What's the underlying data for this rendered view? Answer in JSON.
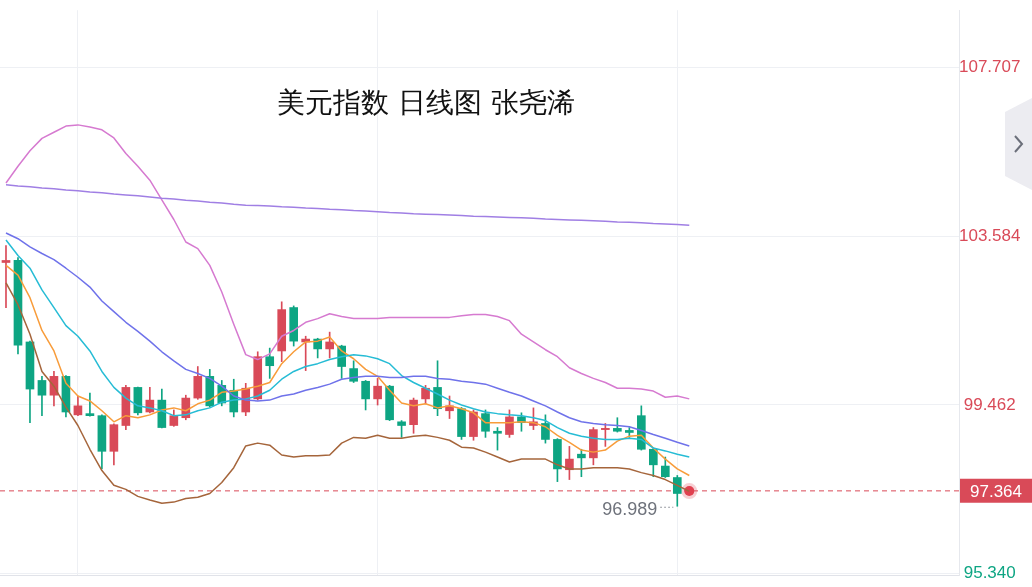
{
  "chart_data": {
    "type": "candlestick",
    "title": "美元指数 日线图 张尧浠",
    "categories": [
      null,
      null,
      null,
      null,
      null,
      null,
      null,
      null,
      null,
      null,
      null,
      null,
      null,
      null,
      null,
      null,
      null,
      null,
      null,
      null,
      null,
      null,
      null,
      null,
      null,
      null,
      null,
      null,
      null,
      null,
      null,
      null,
      null,
      null,
      null,
      null,
      null,
      null,
      null,
      null,
      null,
      null,
      null,
      null,
      null,
      null,
      null,
      null,
      null,
      null,
      null,
      null,
      null,
      null,
      null,
      null,
      null,
      null,
      null,
      null,
      null,
      null,
      null,
      null,
      null,
      null,
      null,
      null,
      null,
      null,
      null,
      null,
      null,
      null,
      null,
      null,
      null,
      null,
      null,
      null
    ],
    "ohlc": [
      [
        102.94,
        103.35,
        101.84,
        102.99
      ],
      [
        102.99,
        103.06,
        100.71,
        100.92
      ],
      [
        101.0,
        101.02,
        99.03,
        99.85
      ],
      [
        100.06,
        100.16,
        99.2,
        99.7
      ],
      [
        99.7,
        100.28,
        99.44,
        100.16
      ],
      [
        100.16,
        100.18,
        99.17,
        99.29
      ],
      [
        99.22,
        99.68,
        99.2,
        99.44
      ],
      [
        99.25,
        99.75,
        99.19,
        99.2
      ],
      [
        99.2,
        99.22,
        97.9,
        98.33
      ],
      [
        98.33,
        99.0,
        98.0,
        98.98
      ],
      [
        98.96,
        99.94,
        98.86,
        99.89
      ],
      [
        99.89,
        99.9,
        99.22,
        99.27
      ],
      [
        99.29,
        99.89,
        99.27,
        99.58
      ],
      [
        99.58,
        99.85,
        98.9,
        98.91
      ],
      [
        98.96,
        99.34,
        98.94,
        99.2
      ],
      [
        99.15,
        99.7,
        99.1,
        99.63
      ],
      [
        99.63,
        100.4,
        99.6,
        100.16
      ],
      [
        100.16,
        100.33,
        99.41,
        99.44
      ],
      [
        99.94,
        100.06,
        99.44,
        99.51
      ],
      [
        99.82,
        100.09,
        99.17,
        99.29
      ],
      [
        99.29,
        99.99,
        99.2,
        99.87
      ],
      [
        99.61,
        100.76,
        99.58,
        100.64
      ],
      [
        100.64,
        100.85,
        100.11,
        100.42
      ],
      [
        100.78,
        101.98,
        100.52,
        101.79
      ],
      [
        101.84,
        101.88,
        100.9,
        101.02
      ],
      [
        101.0,
        101.14,
        100.3,
        101.07
      ],
      [
        101.07,
        101.09,
        100.61,
        100.83
      ],
      [
        100.83,
        101.24,
        100.61,
        101.0
      ],
      [
        100.9,
        100.92,
        100.11,
        100.4
      ],
      [
        100.35,
        100.54,
        100.01,
        100.04
      ],
      [
        100.04,
        100.06,
        99.34,
        99.61
      ],
      [
        99.61,
        100.11,
        99.46,
        99.92
      ],
      [
        99.92,
        99.94,
        99.08,
        99.1
      ],
      [
        99.05,
        99.08,
        98.67,
        98.96
      ],
      [
        98.98,
        99.63,
        98.77,
        99.58
      ],
      [
        99.61,
        99.94,
        99.49,
        99.87
      ],
      [
        99.89,
        100.54,
        99.2,
        99.37
      ],
      [
        99.32,
        99.68,
        99.13,
        99.44
      ],
      [
        99.37,
        99.4,
        98.62,
        98.69
      ],
      [
        98.69,
        99.34,
        98.6,
        99.29
      ],
      [
        99.25,
        99.34,
        98.67,
        98.82
      ],
      [
        98.82,
        98.91,
        98.36,
        98.77
      ],
      [
        98.74,
        99.34,
        98.67,
        99.17
      ],
      [
        99.17,
        99.27,
        98.82,
        99.03
      ],
      [
        98.96,
        99.39,
        98.86,
        99.05
      ],
      [
        99.01,
        99.22,
        98.53,
        98.62
      ],
      [
        98.62,
        98.64,
        97.59,
        97.9
      ],
      [
        97.88,
        98.45,
        97.64,
        98.14
      ],
      [
        98.26,
        98.38,
        97.71,
        98.17
      ],
      [
        98.17,
        98.91,
        98.0,
        98.86
      ],
      [
        98.86,
        99.01,
        98.45,
        98.89
      ],
      [
        98.89,
        99.15,
        98.8,
        98.82
      ],
      [
        98.84,
        98.91,
        98.67,
        98.79
      ],
      [
        99.2,
        99.44,
        98.36,
        98.38
      ],
      [
        98.38,
        98.4,
        97.71,
        98.0
      ],
      [
        97.97,
        98.19,
        97.69,
        97.71
      ],
      [
        97.69,
        97.74,
        96.989,
        97.3
      ],
      null,
      null,
      null,
      null,
      null,
      null,
      null,
      null,
      null,
      null,
      null,
      null,
      null,
      null,
      null,
      null,
      null,
      null,
      null,
      null,
      null,
      null,
      null
    ],
    "colors": [
      "#d94a58",
      "#0ea583",
      "#0ea583",
      "#0ea583",
      "#d94a58",
      "#0ea583",
      "#d94a58",
      "#0ea583",
      "#0ea583",
      "#d94a58",
      "#d94a58",
      "#0ea583",
      "#d94a58",
      "#0ea583",
      "#d94a58",
      "#d94a58",
      "#d94a58",
      "#0ea583",
      "#0ea583",
      "#0ea583",
      "#d94a58",
      "#d94a58",
      "#0ea583",
      "#d94a58",
      "#0ea583",
      "#d94a58",
      "#0ea583",
      "#d94a58",
      "#0ea583",
      "#0ea583",
      "#0ea583",
      "#d94a58",
      "#0ea583",
      "#0ea583",
      "#d94a58",
      "#d94a58",
      "#0ea583",
      "#d94a58",
      "#0ea583",
      "#d94a58",
      "#0ea583",
      "#0ea583",
      "#d94a58",
      "#0ea583",
      "#d94a58",
      "#0ea583",
      "#0ea583",
      "#d94a58",
      "#0ea583",
      "#d94a58",
      "#d94a58",
      "#0ea583",
      "#0ea583",
      "#0ea583",
      "#0ea583",
      "#0ea583",
      "#0ea583",
      null,
      null,
      null,
      null,
      null,
      null,
      null,
      null,
      null,
      null,
      null,
      null,
      null,
      null,
      null,
      null,
      null,
      null,
      null,
      null,
      null,
      null,
      null
    ],
    "series": [
      {
        "type": "line",
        "color": "#a07fe4",
        "values": [
          104.84,
          104.81,
          104.79,
          104.76,
          104.74,
          104.71,
          104.69,
          104.66,
          104.64,
          104.61,
          104.59,
          104.57,
          104.54,
          104.51,
          104.49,
          104.46,
          104.44,
          104.41,
          104.39,
          104.36,
          104.34,
          104.33,
          104.32,
          104.3,
          104.29,
          104.27,
          104.26,
          104.24,
          104.23,
          104.21,
          104.2,
          104.18,
          104.16,
          104.15,
          104.13,
          104.12,
          104.11,
          104.1,
          104.09,
          104.07,
          104.06,
          104.05,
          104.04,
          104.03,
          104.02,
          104.0,
          103.99,
          103.98,
          103.97,
          103.96,
          103.95,
          103.93,
          103.92,
          103.91,
          103.89,
          103.88,
          103.87,
          103.85,
          null,
          null,
          null,
          null,
          null,
          null,
          null,
          null,
          null,
          null,
          null,
          null,
          null,
          null,
          null,
          null,
          null,
          null,
          null,
          null,
          null,
          null
        ]
      },
      {
        "type": "line",
        "color": "#d67ad0",
        "values": [
          104.88,
          105.29,
          105.67,
          105.97,
          106.12,
          106.27,
          106.3,
          106.25,
          106.18,
          105.98,
          105.6,
          105.29,
          104.95,
          104.47,
          103.99,
          103.44,
          103.28,
          102.87,
          102.22,
          101.43,
          100.69,
          100.57,
          100.71,
          101.14,
          101.28,
          101.48,
          101.57,
          101.69,
          101.62,
          101.57,
          101.57,
          101.57,
          101.6,
          101.6,
          101.6,
          101.6,
          101.6,
          101.6,
          101.64,
          101.67,
          101.67,
          101.62,
          101.52,
          101.19,
          101.0,
          100.81,
          100.64,
          100.37,
          100.23,
          100.11,
          100.01,
          99.87,
          99.87,
          99.85,
          99.8,
          99.65,
          99.68,
          99.61,
          null,
          null,
          null,
          null,
          null,
          null,
          null,
          null,
          null,
          null,
          null,
          null,
          null,
          null,
          null,
          null,
          null,
          null,
          null,
          null,
          null,
          null
        ]
      },
      {
        "type": "line",
        "color": "#6f72ea",
        "values": [
          103.66,
          103.52,
          103.32,
          103.16,
          103.01,
          102.8,
          102.58,
          102.34,
          102.0,
          101.74,
          101.48,
          101.26,
          101.02,
          100.76,
          100.54,
          100.33,
          100.23,
          100.11,
          99.92,
          99.68,
          99.58,
          99.56,
          99.58,
          99.68,
          99.73,
          99.82,
          99.89,
          99.97,
          100.09,
          100.13,
          100.16,
          100.16,
          100.13,
          100.13,
          100.16,
          100.16,
          100.11,
          100.09,
          100.04,
          100.01,
          99.97,
          99.87,
          99.77,
          99.68,
          99.56,
          99.44,
          99.29,
          99.15,
          99.05,
          99.01,
          98.98,
          98.96,
          98.93,
          98.84,
          98.74,
          98.65,
          98.55,
          98.46,
          null,
          null,
          null,
          null,
          null,
          null,
          null,
          null,
          null,
          null,
          null,
          null,
          null,
          null,
          null,
          null,
          null,
          null,
          null,
          null,
          null,
          null
        ]
      },
      {
        "type": "line",
        "color": "#26bcd5",
        "values": [
          103.49,
          103.11,
          102.8,
          102.27,
          101.84,
          101.4,
          101.14,
          100.78,
          100.28,
          99.89,
          99.63,
          99.44,
          99.39,
          99.32,
          99.2,
          99.22,
          99.32,
          99.39,
          99.53,
          99.58,
          99.61,
          99.68,
          99.82,
          100.09,
          100.28,
          100.4,
          100.47,
          100.57,
          100.64,
          100.69,
          100.66,
          100.59,
          100.47,
          100.18,
          100.01,
          99.87,
          99.73,
          99.58,
          99.46,
          99.37,
          99.29,
          99.25,
          99.22,
          99.2,
          99.15,
          99.08,
          98.91,
          98.77,
          98.7,
          98.65,
          98.62,
          98.62,
          98.65,
          98.62,
          98.41,
          98.34,
          98.26,
          98.19,
          null,
          null,
          null,
          null,
          null,
          null,
          null,
          null,
          null,
          null,
          null,
          null,
          null,
          null,
          null,
          null,
          null,
          null,
          null,
          null,
          null,
          null
        ]
      },
      {
        "type": "line",
        "color": "#f89c3a",
        "values": [
          102.87,
          102.63,
          102.08,
          101.28,
          100.78,
          99.99,
          99.68,
          99.56,
          99.32,
          99.05,
          99.2,
          99.15,
          99.22,
          99.34,
          99.39,
          99.32,
          99.49,
          99.58,
          99.77,
          99.8,
          99.85,
          99.92,
          100.01,
          100.47,
          100.76,
          101.0,
          101.02,
          101.12,
          100.78,
          100.59,
          100.33,
          100.16,
          99.82,
          99.51,
          99.44,
          99.49,
          99.39,
          99.44,
          99.37,
          99.27,
          99.03,
          99.03,
          99.03,
          99.05,
          99.03,
          98.93,
          98.72,
          98.55,
          98.36,
          98.31,
          98.36,
          98.58,
          98.7,
          98.72,
          98.41,
          98.14,
          97.9,
          97.74,
          null,
          null,
          null,
          null,
          null,
          null,
          null,
          null,
          null,
          null,
          null,
          null,
          null,
          null,
          null,
          null,
          null,
          null,
          null,
          null,
          null,
          null
        ]
      },
      {
        "type": "line",
        "color": "#a5653b",
        "values": [
          102.44,
          101.91,
          101.19,
          100.28,
          99.92,
          99.41,
          98.96,
          98.38,
          97.86,
          97.5,
          97.4,
          97.23,
          97.14,
          97.06,
          97.09,
          97.18,
          97.21,
          97.3,
          97.57,
          97.93,
          98.46,
          98.53,
          98.48,
          98.24,
          98.19,
          98.22,
          98.22,
          98.24,
          98.53,
          98.67,
          98.65,
          98.72,
          98.65,
          98.65,
          98.7,
          98.72,
          98.67,
          98.6,
          98.43,
          98.41,
          98.31,
          98.19,
          98.07,
          98.14,
          98.14,
          98.14,
          98.0,
          97.9,
          97.9,
          97.93,
          97.93,
          97.93,
          97.9,
          97.81,
          97.74,
          97.64,
          97.5,
          97.35,
          null,
          null,
          null,
          null,
          null,
          null,
          null,
          null,
          null,
          null,
          null,
          null,
          null,
          null,
          null,
          null,
          null,
          null,
          null,
          null,
          null,
          null
        ]
      },
      {
        "type": "scatter",
        "color": "#e0404f",
        "marker": "circle",
        "values": [
          null,
          null,
          null,
          null,
          null,
          null,
          null,
          null,
          null,
          null,
          null,
          null,
          null,
          null,
          null,
          null,
          null,
          null,
          null,
          null,
          null,
          null,
          null,
          null,
          null,
          null,
          null,
          null,
          null,
          null,
          null,
          null,
          null,
          null,
          null,
          null,
          null,
          null,
          null,
          null,
          null,
          null,
          null,
          null,
          null,
          null,
          null,
          null,
          null,
          null,
          null,
          null,
          null,
          null,
          null,
          null,
          null,
          97.36,
          null,
          null,
          null,
          null,
          null,
          null,
          null,
          null,
          null,
          null,
          null,
          null,
          null,
          null,
          null,
          null,
          null,
          null,
          null,
          null,
          null,
          null
        ]
      }
    ],
    "marker": "none",
    "ylim": [
      95.31,
      109.1
    ],
    "yticks": [
      {
        "value": 95.34,
        "label": "95.340"
      },
      99.462,
      103.584,
      107.707
    ],
    "grid": true,
    "ref_lines": [
      {
        "axis": "y",
        "value": 97.364,
        "label": "97.364",
        "color": "#d94a58",
        "line_style": "dashed"
      }
    ],
    "annotations": [
      "96.989"
    ]
  }
}
